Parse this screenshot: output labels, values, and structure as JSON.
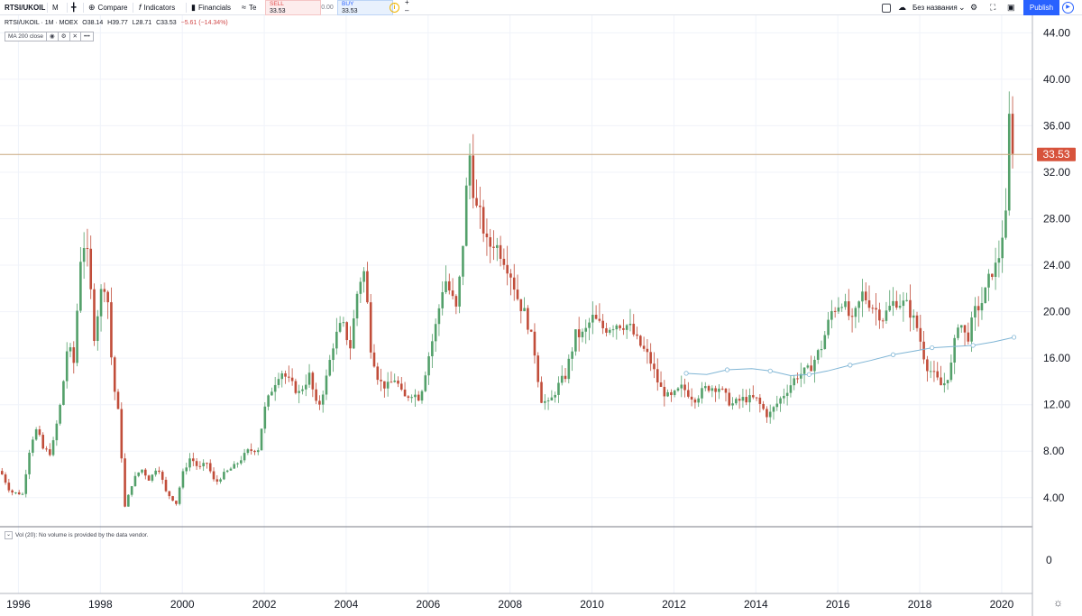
{
  "toolbar": {
    "symbol": "RTSI/UKOIL",
    "interval": "M",
    "compare": "Compare",
    "indicators": "Indicators",
    "financials": "Financials",
    "templates": "Te",
    "layout_name": "Без названия",
    "publish": "Publish"
  },
  "trade": {
    "sell_label": "SELL",
    "sell_price": "33.53",
    "spread": "0.00",
    "buy_label": "BUY",
    "buy_price": "33.53"
  },
  "legend": {
    "title": "RTSI/UKOIL · 1M · MOEX",
    "open": "O38.14",
    "high": "H39.77",
    "low": "L28.71",
    "close": "C33.53",
    "change": "−5.61 (−14.34%)",
    "ma_label": "MA 200 close",
    "vol_label": "Vol (20): No volume is provided by the data vendor."
  },
  "colors": {
    "up": "#53a06a",
    "down": "#c14d3a",
    "ma": "#7fb5d5",
    "price_line": "#c9a77f",
    "last_price_bg": "#d7533c",
    "accent": "#2962ff"
  },
  "icons": [
    "compare-plus-icon",
    "indicators-fx-icon",
    "financials-bars-icon",
    "templates-icon",
    "info-icon",
    "cloud-icon",
    "chevron-down-icon",
    "gear-icon",
    "fullscreen-icon",
    "camera-icon",
    "play-icon",
    "eye-icon",
    "settings-icon",
    "close-icon",
    "more-icon"
  ],
  "chart_data": {
    "type": "candlestick",
    "interval": "1M",
    "x_tick_labels": [
      "1996",
      "1998",
      "2000",
      "2002",
      "2004",
      "2006",
      "2008",
      "2010",
      "2012",
      "2014",
      "2016",
      "2018",
      "2020"
    ],
    "y_tick_labels": [
      "4.00",
      "8.00",
      "12.00",
      "16.00",
      "20.00",
      "24.00",
      "28.00",
      "32.00",
      "36.00",
      "40.00",
      "44.00"
    ],
    "volume_tick_label": "0",
    "ylim": [
      1.5,
      45.5
    ],
    "xlim": [
      1995.55,
      2020.75
    ],
    "last_price": 33.53,
    "last_price_label": "33.53",
    "close_path": [
      [
        1995.6,
        6.0
      ],
      [
        1995.8,
        4.5
      ],
      [
        1996.1,
        4.3
      ],
      [
        1996.3,
        8.8
      ],
      [
        1996.45,
        9.9
      ],
      [
        1996.6,
        8.2
      ],
      [
        1996.8,
        7.8
      ],
      [
        1997.05,
        12.5
      ],
      [
        1997.2,
        17.2
      ],
      [
        1997.35,
        15.6
      ],
      [
        1997.55,
        26.5
      ],
      [
        1997.7,
        24.5
      ],
      [
        1997.85,
        18.0
      ],
      [
        1998.0,
        21.5
      ],
      [
        1998.15,
        22.8
      ],
      [
        1998.3,
        14.2
      ],
      [
        1998.45,
        11.0
      ],
      [
        1998.6,
        3.2
      ],
      [
        1998.8,
        5.5
      ],
      [
        1999.0,
        6.5
      ],
      [
        1999.2,
        5.5
      ],
      [
        1999.4,
        6.8
      ],
      [
        1999.6,
        4.5
      ],
      [
        1999.85,
        3.5
      ],
      [
        2000.0,
        6.0
      ],
      [
        2000.2,
        7.5
      ],
      [
        2000.4,
        6.5
      ],
      [
        2000.6,
        7.0
      ],
      [
        2000.8,
        5.2
      ],
      [
        2001.0,
        6.0
      ],
      [
        2001.3,
        6.8
      ],
      [
        2001.6,
        8.0
      ],
      [
        2001.85,
        8.2
      ],
      [
        2002.0,
        11.5
      ],
      [
        2002.2,
        13.5
      ],
      [
        2002.4,
        15.0
      ],
      [
        2002.6,
        14.0
      ],
      [
        2002.85,
        13.0
      ],
      [
        2003.1,
        14.5
      ],
      [
        2003.3,
        11.5
      ],
      [
        2003.5,
        14.0
      ],
      [
        2003.7,
        17.5
      ],
      [
        2003.9,
        19.0
      ],
      [
        2004.1,
        17.0
      ],
      [
        2004.3,
        22.5
      ],
      [
        2004.45,
        23.5
      ],
      [
        2004.6,
        17.0
      ],
      [
        2004.8,
        14.0
      ],
      [
        2005.0,
        13.5
      ],
      [
        2005.2,
        14.3
      ],
      [
        2005.4,
        12.5
      ],
      [
        2005.6,
        13.0
      ],
      [
        2005.8,
        12.6
      ],
      [
        2006.0,
        16.0
      ],
      [
        2006.2,
        19.0
      ],
      [
        2006.4,
        23.0
      ],
      [
        2006.55,
        21.5
      ],
      [
        2006.7,
        20.0
      ],
      [
        2006.85,
        26.0
      ],
      [
        2007.0,
        34.0
      ],
      [
        2007.15,
        29.0
      ],
      [
        2007.3,
        28.0
      ],
      [
        2007.45,
        25.5
      ],
      [
        2007.6,
        26.0
      ],
      [
        2007.8,
        25.0
      ],
      [
        2008.0,
        23.5
      ],
      [
        2008.2,
        21.0
      ],
      [
        2008.4,
        19.5
      ],
      [
        2008.6,
        16.5
      ],
      [
        2008.75,
        12.5
      ],
      [
        2008.95,
        12.0
      ],
      [
        2009.15,
        13.5
      ],
      [
        2009.35,
        14.5
      ],
      [
        2009.6,
        18.0
      ],
      [
        2009.8,
        18.0
      ],
      [
        2010.0,
        19.5
      ],
      [
        2010.3,
        18.5
      ],
      [
        2010.6,
        19.0
      ],
      [
        2010.9,
        18.8
      ],
      [
        2011.1,
        17.5
      ],
      [
        2011.4,
        16.0
      ],
      [
        2011.65,
        13.5
      ],
      [
        2011.9,
        12.5
      ],
      [
        2012.2,
        13.5
      ],
      [
        2012.5,
        12.5
      ],
      [
        2012.8,
        13.5
      ],
      [
        2013.1,
        13.5
      ],
      [
        2013.4,
        12.0
      ],
      [
        2013.7,
        12.5
      ],
      [
        2014.0,
        12.5
      ],
      [
        2014.3,
        11.0
      ],
      [
        2014.6,
        12.5
      ],
      [
        2014.8,
        13.5
      ],
      [
        2015.0,
        14.5
      ],
      [
        2015.3,
        15.0
      ],
      [
        2015.6,
        17.0
      ],
      [
        2015.85,
        20.0
      ],
      [
        2016.1,
        21.0
      ],
      [
        2016.35,
        19.0
      ],
      [
        2016.6,
        21.5
      ],
      [
        2016.85,
        20.5
      ],
      [
        2017.1,
        19.5
      ],
      [
        2017.4,
        21.0
      ],
      [
        2017.7,
        20.5
      ],
      [
        2017.95,
        18.5
      ],
      [
        2018.15,
        15.5
      ],
      [
        2018.35,
        14.5
      ],
      [
        2018.55,
        13.5
      ],
      [
        2018.75,
        15.0
      ],
      [
        2018.95,
        19.5
      ],
      [
        2019.15,
        17.5
      ],
      [
        2019.35,
        20.0
      ],
      [
        2019.55,
        21.0
      ],
      [
        2019.75,
        23.5
      ],
      [
        2019.9,
        24.0
      ],
      [
        2020.0,
        26.5
      ],
      [
        2020.1,
        28.0
      ],
      [
        2020.2,
        38.2
      ],
      [
        2020.28,
        33.53
      ]
    ],
    "ma_200_close": [
      [
        2012.3,
        14.7
      ],
      [
        2012.8,
        14.6
      ],
      [
        2013.3,
        15.0
      ],
      [
        2013.9,
        15.1
      ],
      [
        2014.35,
        14.9
      ],
      [
        2014.85,
        14.5
      ],
      [
        2015.3,
        14.6
      ],
      [
        2015.75,
        14.9
      ],
      [
        2016.3,
        15.4
      ],
      [
        2016.8,
        15.8
      ],
      [
        2017.35,
        16.3
      ],
      [
        2017.85,
        16.6
      ],
      [
        2018.3,
        16.9
      ],
      [
        2018.8,
        17.0
      ],
      [
        2019.3,
        17.1
      ],
      [
        2019.8,
        17.4
      ],
      [
        2020.3,
        17.8
      ]
    ]
  }
}
